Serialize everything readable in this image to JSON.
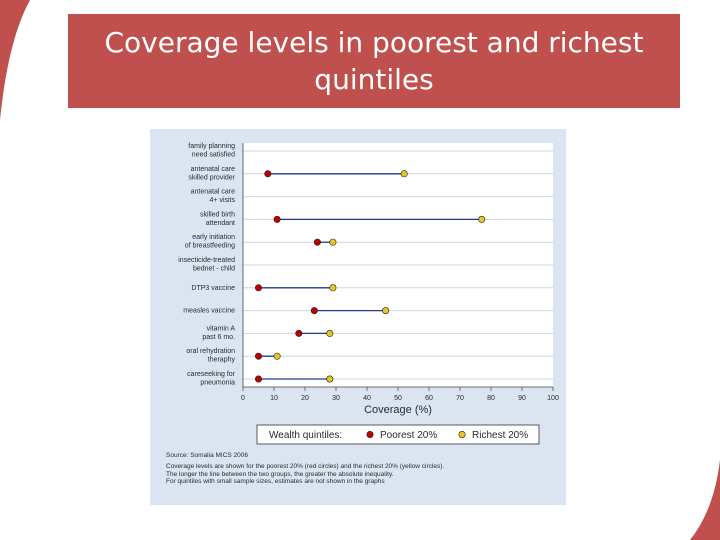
{
  "header": {
    "title": "Coverage levels in poorest and richest quintiles"
  },
  "colors": {
    "banner": "#c0504d",
    "panel_background": "#dbe5f1",
    "poorest": "#c00000",
    "richest": "#e8c520",
    "connector": "#1f3a93"
  },
  "chart_data": {
    "type": "dot-range",
    "indicators": [
      {
        "label_lines": [
          "family planning",
          "need satisfied"
        ],
        "poorest": null,
        "richest": null
      },
      {
        "label_lines": [
          "antenatal care",
          "skilled provider"
        ],
        "poorest": 8,
        "richest": 52
      },
      {
        "label_lines": [
          "antenatal care",
          "4+ visits"
        ],
        "poorest": null,
        "richest": null
      },
      {
        "label_lines": [
          "skilled birth",
          "attendant"
        ],
        "poorest": 11,
        "richest": 77
      },
      {
        "label_lines": [
          "early initiation",
          "of breastfeeding"
        ],
        "poorest": 24,
        "richest": 29
      },
      {
        "label_lines": [
          "insecticide-treated",
          "bednet - child"
        ],
        "poorest": null,
        "richest": null
      },
      {
        "label_lines": [
          "DTP3 vaccine"
        ],
        "poorest": 5,
        "richest": 29
      },
      {
        "label_lines": [
          "measles vaccine"
        ],
        "poorest": 23,
        "richest": 46
      },
      {
        "label_lines": [
          "vitamin A",
          "past 6 mo."
        ],
        "poorest": 18,
        "richest": 28
      },
      {
        "label_lines": [
          "oral rehydration",
          "theraphy"
        ],
        "poorest": 5,
        "richest": 11
      },
      {
        "label_lines": [
          "careseeking for",
          "pneumonia"
        ],
        "poorest": 5,
        "richest": 28
      }
    ],
    "x_ticks": [
      "0",
      "10",
      "20",
      "30",
      "40",
      "50",
      "60",
      "70",
      "80",
      "90",
      "100"
    ],
    "xlim": [
      0,
      100
    ],
    "xlabel": "Coverage (%)",
    "legend": {
      "title": "Wealth quintiles:",
      "items": [
        "Poorest 20%",
        "Richest 20%"
      ],
      "position": "bottom"
    }
  },
  "footnotes": {
    "source": "Source: Somalia MICS 2006",
    "lines": [
      "Coverage levels are shown for the poorest 20% (red circles) and the richest 20% (yellow circles).",
      "The longer the line between the two groups, the greater the absolute inequality.",
      "For quintiles with small sample sizes, estimates are not shown in the graphs"
    ]
  }
}
